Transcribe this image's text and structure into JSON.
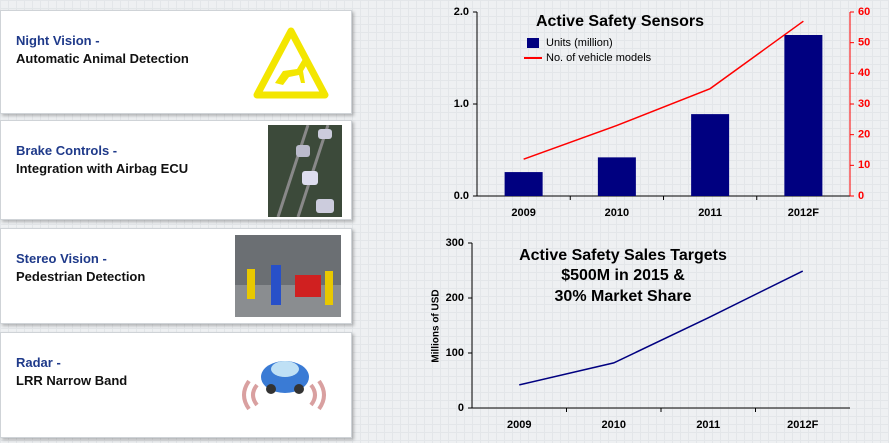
{
  "cards": [
    {
      "title": "Night Vision -",
      "subtitle": "Automatic Animal Detection"
    },
    {
      "title": "Brake Controls -",
      "subtitle": "Integration with Airbag ECU"
    },
    {
      "title": "Stereo Vision -",
      "subtitle": "Pedestrian Detection"
    },
    {
      "title": "Radar -",
      "subtitle": "LRR Narrow Band"
    }
  ],
  "chart_data": [
    {
      "type": "bar",
      "title": "Active Safety Sensors",
      "categories": [
        "2009",
        "2010",
        "2011",
        "2012F"
      ],
      "series": [
        {
          "name": "Units (million)",
          "color": "#000080",
          "values": [
            0.26,
            0.42,
            0.89,
            1.75
          ]
        },
        {
          "name": "No. of vehicle models",
          "color": "#ff0000",
          "type": "line",
          "axis": "y2",
          "values": [
            12,
            23,
            35,
            57
          ]
        }
      ],
      "ylim": [
        0,
        2
      ],
      "yticks": [
        {
          "value": 0,
          "label": "0.0"
        },
        {
          "value": 1,
          "label": "1.0"
        },
        {
          "value": 2,
          "label": "2.0"
        }
      ],
      "y2lim": [
        0,
        60
      ],
      "y2ticks": [
        0,
        10,
        20,
        30,
        40,
        50,
        60
      ]
    },
    {
      "type": "line",
      "title": "Active Safety Sales Targets",
      "annotations": [
        "$500M in 2015 &",
        "30% Market Share"
      ],
      "y_label": "Millions of USD",
      "categories": [
        "2009",
        "2010",
        "2011",
        "2012F"
      ],
      "series": [
        {
          "color": "#000080",
          "values": [
            42,
            82,
            164,
            249
          ]
        }
      ],
      "ylim": [
        0,
        300
      ],
      "yticks": [
        0,
        100,
        200,
        300
      ]
    }
  ]
}
